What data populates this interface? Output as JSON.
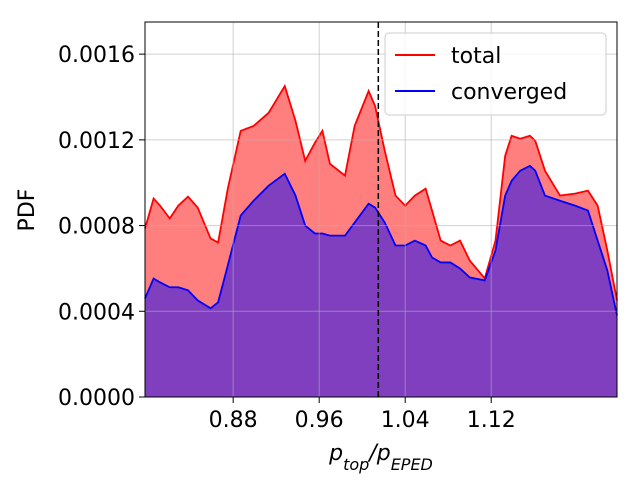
{
  "chart_data": {
    "type": "area",
    "ylabel": "PDF",
    "xlabel": [
      "p",
      "top",
      "/p",
      "EPED"
    ],
    "x": [
      0.798,
      0.806,
      0.812,
      0.821,
      0.829,
      0.838,
      0.847,
      0.859,
      0.866,
      0.875,
      0.887,
      0.899,
      0.913,
      0.928,
      0.938,
      0.947,
      0.956,
      0.963,
      0.97,
      0.984,
      0.993,
      1.006,
      1.012,
      1.021,
      1.031,
      1.04,
      1.049,
      1.059,
      1.065,
      1.073,
      1.082,
      1.091,
      1.1,
      1.114,
      1.124,
      1.133,
      1.139,
      1.147,
      1.156,
      1.161,
      1.17,
      1.184,
      1.198,
      1.21,
      1.219,
      1.228,
      1.237
    ],
    "series": [
      {
        "name": "total",
        "color": "#ff0000",
        "values": [
          0.000786,
          0.000926,
          0.000893,
          0.000833,
          0.000893,
          0.000935,
          0.000884,
          0.00074,
          0.000721,
          0.000972,
          0.001242,
          0.001265,
          0.001326,
          0.001451,
          0.001288,
          0.001102,
          0.001186,
          0.001242,
          0.001088,
          0.001033,
          0.001265,
          0.001428,
          0.001358,
          0.001149,
          0.00094,
          0.000893,
          0.00094,
          0.000972,
          0.00087,
          0.00073,
          0.000707,
          0.00073,
          0.000637,
          0.000553,
          0.00073,
          0.001126,
          0.001219,
          0.001205,
          0.001219,
          0.001195,
          0.001056,
          0.00094,
          0.000949,
          0.000963,
          0.000893,
          0.000684,
          0.000451
        ]
      },
      {
        "name": "converged",
        "color": "#0000ff",
        "values": [
          0.00046,
          0.000553,
          0.000535,
          0.000512,
          0.000512,
          0.000498,
          0.000451,
          0.000414,
          0.000442,
          0.000614,
          0.000847,
          0.000916,
          0.000986,
          0.001042,
          0.00094,
          0.0008,
          0.000763,
          0.000763,
          0.000753,
          0.000753,
          0.000814,
          0.000902,
          0.000884,
          0.000814,
          0.000707,
          0.000707,
          0.00073,
          0.000707,
          0.000651,
          0.000628,
          0.000628,
          0.0006,
          0.000558,
          0.000544,
          0.000684,
          0.00094,
          0.001009,
          0.001056,
          0.001079,
          0.001056,
          0.00094,
          0.000916,
          0.000893,
          0.00087,
          0.00073,
          0.000591,
          0.000381
        ]
      }
    ],
    "vline": 1.015,
    "xlim": [
      0.798,
      1.237
    ],
    "ylim": [
      0,
      0.00175
    ],
    "xticks": [
      0.88,
      0.96,
      1.04,
      1.12
    ],
    "yticks": [
      {
        "value": 0,
        "label": "0.0000"
      },
      {
        "value": 0.0004,
        "label": "0.0004"
      },
      {
        "value": 0.0008,
        "label": "0.0008"
      },
      {
        "value": 0.0012,
        "label": "0.0012"
      },
      {
        "value": 0.0016,
        "label": "0.0016"
      }
    ],
    "grid": true,
    "legend": "upper right"
  }
}
